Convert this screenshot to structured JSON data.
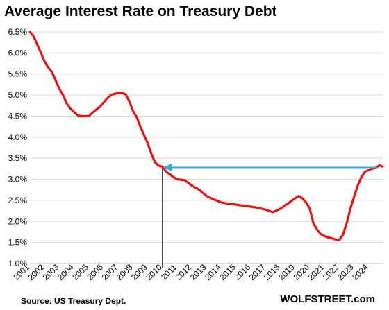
{
  "chart_data": {
    "type": "line",
    "title": "Average Interest Rate on Treasury Debt",
    "xlabel": "",
    "ylabel": "",
    "source": "Source: US Treasury Dept.",
    "brand": "WOLFSTREET.com",
    "ylim": [
      1.0,
      6.5
    ],
    "xlim": [
      2001.0,
      2025.0
    ],
    "y_ticks": [
      1.0,
      1.5,
      2.0,
      2.5,
      3.0,
      3.5,
      4.0,
      4.5,
      5.0,
      5.5,
      6.0,
      6.5
    ],
    "y_tick_labels": [
      "1.0%",
      "1.5%",
      "2.0%",
      "2.5%",
      "3.0%",
      "3.5%",
      "4.0%",
      "4.5%",
      "5.0%",
      "5.5%",
      "6.0%",
      "6.5%"
    ],
    "x_ticks": [
      2001,
      2002,
      2003,
      2004,
      2005,
      2006,
      2007,
      2008,
      2009,
      2010,
      2011,
      2012,
      2013,
      2014,
      2015,
      2016,
      2017,
      2018,
      2019,
      2020,
      2021,
      2022,
      2023,
      2024
    ],
    "x_tick_labels": [
      "2001",
      "2002",
      "2003",
      "2004",
      "2005",
      "2006",
      "2007",
      "2008",
      "2009",
      "2010",
      "2011",
      "2012",
      "2013",
      "2014",
      "2015",
      "2016",
      "2017",
      "2018",
      "2019",
      "2020",
      "2021",
      "2022",
      "2023",
      "2024"
    ],
    "grid": "horizontal",
    "colors": {
      "line": "#ee1111",
      "arrow": "#29aee6",
      "marker": "#000000",
      "grid": "#d9d9d9"
    },
    "series": [
      {
        "x": [
          2001.0,
          2001.25,
          2001.5,
          2001.75,
          2002.0,
          2002.25,
          2002.5,
          2002.75,
          2003.0,
          2003.25,
          2003.5,
          2003.75,
          2004.0,
          2004.25,
          2004.5,
          2004.75,
          2005.0,
          2005.25,
          2005.5,
          2005.75,
          2006.0,
          2006.25,
          2006.5,
          2006.75,
          2007.0,
          2007.25,
          2007.5,
          2007.75,
          2008.0,
          2008.25,
          2008.5,
          2008.75,
          2009.0,
          2009.25,
          2009.5,
          2009.75,
          2010.0,
          2010.25,
          2010.5,
          2010.75,
          2011.0,
          2011.5,
          2012.0,
          2012.5,
          2013.0,
          2013.5,
          2014.0,
          2014.5,
          2015.0,
          2015.5,
          2016.0,
          2016.5,
          2017.0,
          2017.5,
          2018.0,
          2018.5,
          2019.0,
          2019.25,
          2019.5,
          2019.75,
          2020.0,
          2020.25,
          2020.5,
          2020.75,
          2021.0,
          2021.25,
          2021.5,
          2021.75,
          2022.0,
          2022.25,
          2022.5,
          2022.75,
          2023.0,
          2023.25,
          2023.5,
          2023.75,
          2024.0,
          2024.25,
          2024.5,
          2024.75,
          2024.95
        ],
        "y": [
          6.5,
          6.4,
          6.2,
          6.0,
          5.8,
          5.65,
          5.55,
          5.35,
          5.15,
          5.0,
          4.8,
          4.68,
          4.6,
          4.52,
          4.5,
          4.5,
          4.5,
          4.58,
          4.65,
          4.72,
          4.82,
          4.92,
          5.0,
          5.03,
          5.05,
          5.05,
          5.02,
          4.85,
          4.62,
          4.48,
          4.25,
          4.05,
          3.85,
          3.6,
          3.4,
          3.32,
          3.3,
          3.18,
          3.12,
          3.05,
          3.0,
          2.98,
          2.85,
          2.75,
          2.6,
          2.52,
          2.45,
          2.42,
          2.4,
          2.37,
          2.35,
          2.32,
          2.28,
          2.22,
          2.3,
          2.42,
          2.55,
          2.6,
          2.55,
          2.45,
          2.3,
          1.95,
          1.8,
          1.7,
          1.65,
          1.62,
          1.6,
          1.57,
          1.56,
          1.68,
          1.95,
          2.3,
          2.58,
          2.85,
          3.05,
          3.18,
          3.22,
          3.25,
          3.28,
          3.33,
          3.3
        ]
      }
    ],
    "annotations": [
      {
        "type": "arrow",
        "from": [
          2024.95,
          3.28
        ],
        "to": [
          2010.2,
          3.28
        ]
      },
      {
        "type": "vline",
        "x": 2010.0,
        "from_y": 1.0,
        "to_y": 3.28
      }
    ]
  }
}
